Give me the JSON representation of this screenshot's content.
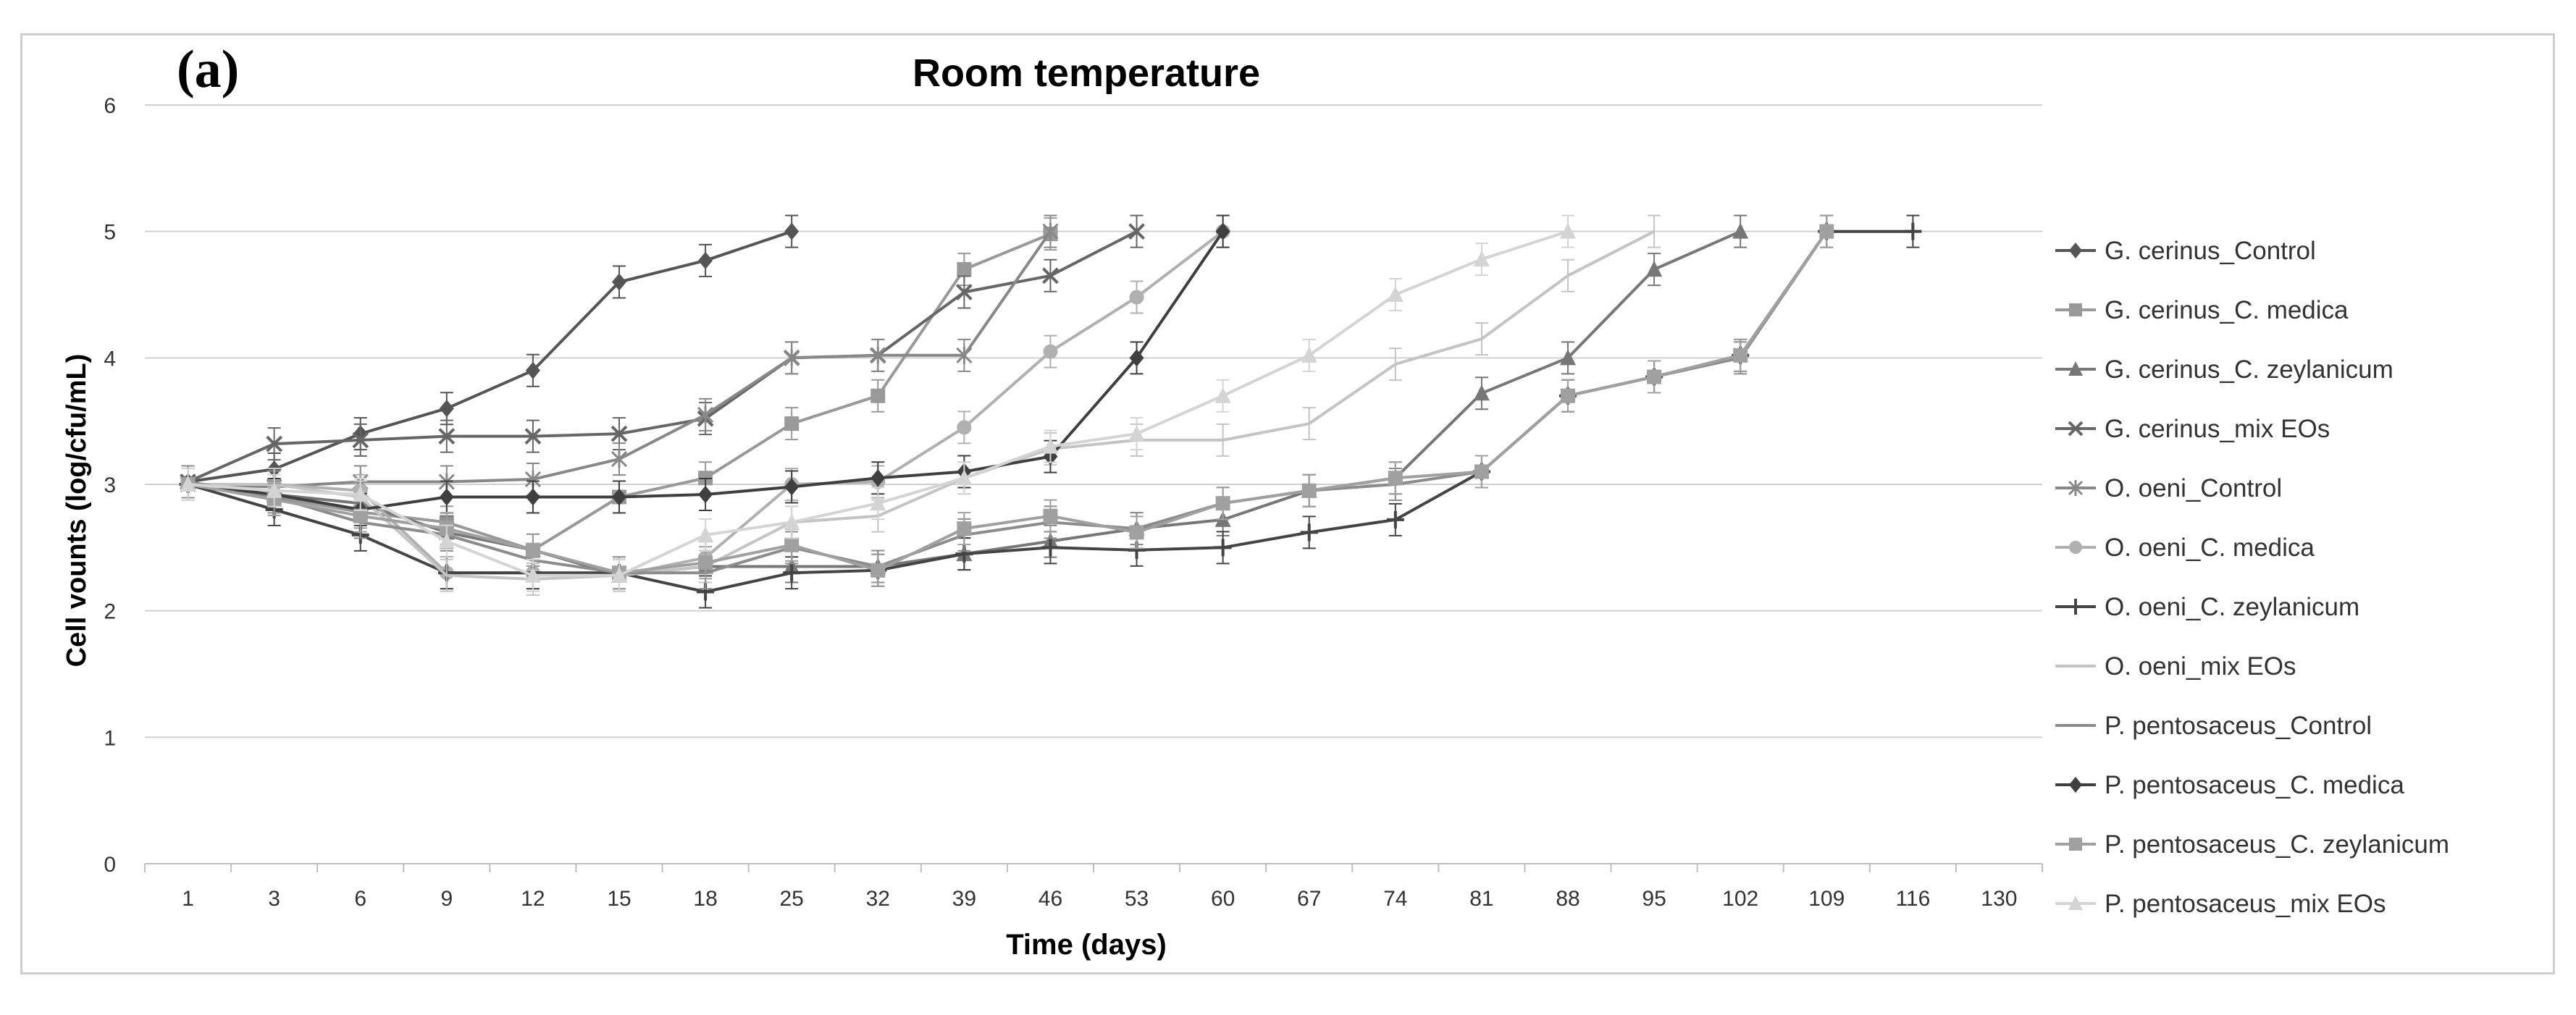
{
  "panel_label": "(a)",
  "chart_data": {
    "type": "line",
    "title": "Room temperature",
    "xlabel": "Time (days)",
    "ylabel": "Cell vounts (log/cfu/mL)",
    "categories": [
      "1",
      "3",
      "6",
      "9",
      "12",
      "15",
      "18",
      "25",
      "32",
      "39",
      "46",
      "53",
      "60",
      "67",
      "74",
      "81",
      "88",
      "95",
      "102",
      "109",
      "116",
      "130"
    ],
    "yticks": [
      "0",
      "1",
      "2",
      "3",
      "4",
      "5",
      "6"
    ],
    "ylim": [
      0,
      6
    ],
    "grid": "horizontal",
    "legend": "right",
    "series": [
      {
        "name": "G. cerinus_Control",
        "marker": "diamond",
        "color": "#555555",
        "values": [
          3.02,
          3.12,
          3.4,
          3.6,
          3.9,
          4.6,
          4.77,
          5.0,
          null,
          null,
          null,
          null,
          null,
          null,
          null,
          null,
          null,
          null,
          null,
          null,
          null,
          null
        ]
      },
      {
        "name": "G. cerinus_C. medica",
        "marker": "square",
        "color": "#999999",
        "values": [
          3.0,
          2.9,
          2.78,
          2.7,
          2.48,
          2.9,
          3.05,
          3.48,
          3.7,
          4.7,
          4.98,
          null,
          null,
          null,
          null,
          null,
          null,
          null,
          null,
          null,
          null,
          null
        ]
      },
      {
        "name": "G. cerinus_C. zeylanicum",
        "marker": "triangle",
        "color": "#777777",
        "values": [
          3.0,
          2.92,
          2.85,
          2.62,
          2.48,
          2.28,
          2.35,
          2.35,
          2.35,
          2.45,
          2.55,
          2.65,
          2.72,
          2.95,
          3.05,
          3.72,
          4.0,
          4.7,
          5.0,
          null,
          null,
          null
        ]
      },
      {
        "name": "G. cerinus_mix EOs",
        "marker": "x",
        "color": "#666666",
        "values": [
          3.02,
          3.32,
          3.35,
          3.38,
          3.38,
          3.4,
          3.52,
          4.0,
          4.02,
          4.52,
          4.65,
          5.0,
          null,
          null,
          null,
          null,
          null,
          null,
          null,
          null,
          null,
          null
        ]
      },
      {
        "name": "O. oeni_Control",
        "marker": "star",
        "color": "#888888",
        "values": [
          3.0,
          2.98,
          3.02,
          3.02,
          3.04,
          3.2,
          3.55,
          4.0,
          4.02,
          4.02,
          5.0,
          null,
          null,
          null,
          null,
          null,
          null,
          null,
          null,
          null,
          null,
          null
        ]
      },
      {
        "name": "O. oeni_C. medica",
        "marker": "circle",
        "color": "#b0b0b0",
        "values": [
          3.0,
          3.0,
          2.95,
          2.3,
          2.3,
          2.28,
          2.42,
          3.0,
          3.02,
          3.45,
          4.05,
          4.48,
          5.0,
          null,
          null,
          null,
          null,
          null,
          null,
          null,
          null,
          null
        ]
      },
      {
        "name": "O. oeni_C. zeylanicum",
        "marker": "plus",
        "color": "#444444",
        "values": [
          3.0,
          2.8,
          2.6,
          2.3,
          2.3,
          2.3,
          2.15,
          2.3,
          2.32,
          2.45,
          2.5,
          2.48,
          2.5,
          2.62,
          2.72,
          3.1,
          3.7,
          3.85,
          4.02,
          5.0,
          5.0,
          null
        ]
      },
      {
        "name": "O. oeni_mix EOs",
        "marker": "none",
        "color": "#c4c4c4",
        "values": [
          3.0,
          3.0,
          2.9,
          2.28,
          2.25,
          2.28,
          2.35,
          2.7,
          2.75,
          3.05,
          3.28,
          3.35,
          3.35,
          3.48,
          3.95,
          4.15,
          4.65,
          5.0,
          null,
          null,
          null,
          null
        ]
      },
      {
        "name": "P. pentosaceus_Control",
        "marker": "none",
        "color": "#8c8c8c",
        "values": [
          3.02,
          2.9,
          2.7,
          2.6,
          2.4,
          2.3,
          2.3,
          2.5,
          2.35,
          2.6,
          2.7,
          2.65,
          2.85,
          2.95,
          3.0,
          3.1,
          3.7,
          3.85,
          4.0,
          5.0,
          null,
          null
        ]
      },
      {
        "name": "P. pentosaceus_C. medica",
        "marker": "diamond",
        "color": "#3f3f3f",
        "values": [
          3.0,
          2.92,
          2.8,
          2.9,
          2.9,
          2.9,
          2.92,
          2.98,
          3.05,
          3.1,
          3.22,
          4.0,
          5.0,
          null,
          null,
          null,
          null,
          null,
          null,
          null,
          null,
          null
        ]
      },
      {
        "name": "P. pentosaceus_C. zeylanicum",
        "marker": "square",
        "color": "#a0a0a0",
        "values": [
          3.0,
          2.88,
          2.75,
          2.65,
          2.48,
          2.3,
          2.38,
          2.52,
          2.32,
          2.65,
          2.75,
          2.62,
          2.85,
          2.95,
          3.05,
          3.1,
          3.7,
          3.85,
          4.02,
          5.0,
          null,
          null
        ]
      },
      {
        "name": "P. pentosaceus_mix EOs",
        "marker": "triangle",
        "color": "#d4d4d4",
        "values": [
          3.0,
          2.95,
          2.92,
          2.55,
          2.28,
          2.28,
          2.6,
          2.7,
          2.85,
          3.05,
          3.3,
          3.4,
          3.7,
          4.02,
          4.5,
          4.78,
          5.0,
          null,
          null,
          null,
          null,
          null
        ]
      }
    ]
  }
}
